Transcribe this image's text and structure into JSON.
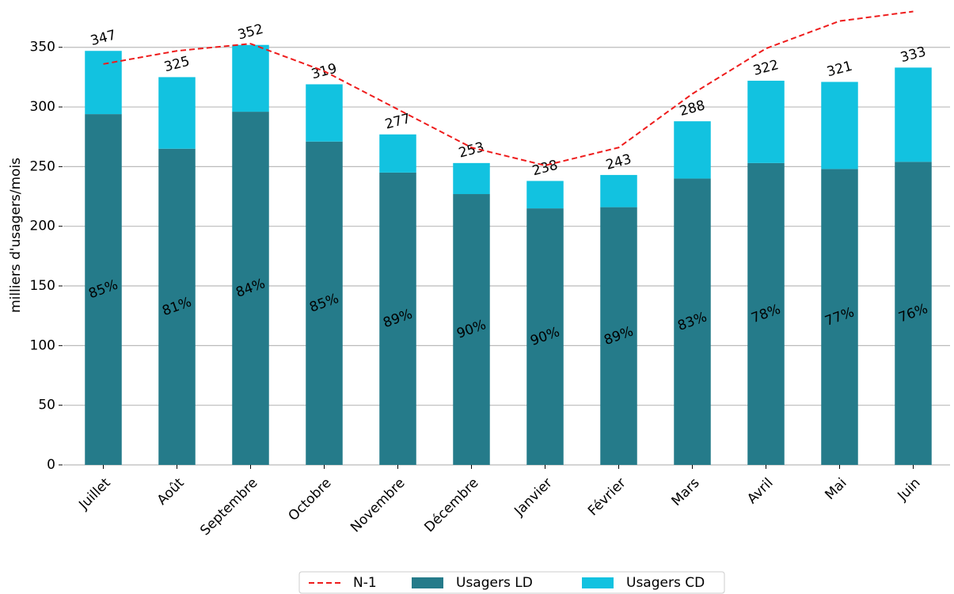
{
  "chart_data": {
    "type": "bar",
    "y_label": "milliers d'usagers/mois",
    "categories": [
      "Juillet",
      "Août",
      "Septembre",
      "Octobre",
      "Novembre",
      "Décembre",
      "Janvier",
      "Février",
      "Mars",
      "Avril",
      "Mai",
      "Juin"
    ],
    "series": [
      {
        "name": "N-1",
        "type": "line",
        "color": "#ee1c1c",
        "values": [
          336,
          347,
          353,
          330,
          298,
          266,
          251,
          266,
          311,
          349,
          372,
          380
        ]
      },
      {
        "name": "Usagers LD",
        "type": "bar",
        "color": "#257b8a",
        "values": [
          294,
          265,
          296,
          271,
          245,
          227,
          215,
          216,
          240,
          253,
          248,
          254
        ],
        "labels": [
          "85%",
          "81%",
          "84%",
          "85%",
          "89%",
          "90%",
          "90%",
          "89%",
          "83%",
          "78%",
          "77%",
          "76%"
        ]
      },
      {
        "name": "Usagers CD",
        "type": "bar",
        "color": "#12c2e0",
        "values": [
          53,
          60,
          56,
          48,
          32,
          26,
          23,
          27,
          48,
          69,
          73,
          79
        ]
      }
    ],
    "totals": [
      347,
      325,
      352,
      319,
      277,
      253,
      238,
      243,
      288,
      322,
      321,
      333
    ],
    "ylim": [
      0,
      385
    ],
    "yticks": [
      0,
      50,
      100,
      150,
      200,
      250,
      300,
      350
    ],
    "grid": true
  }
}
